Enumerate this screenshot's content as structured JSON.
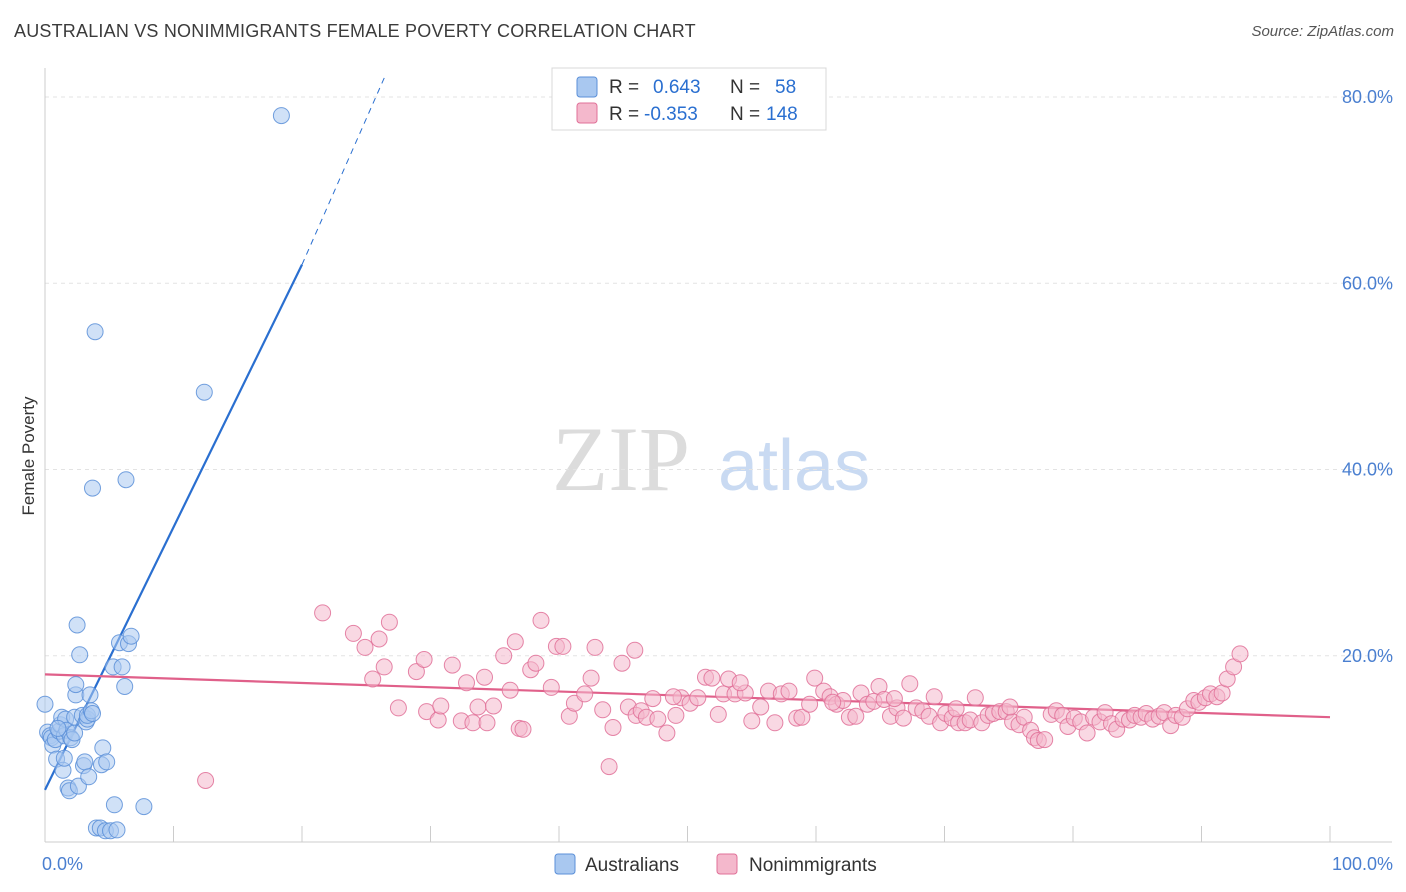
{
  "title": "AUSTRALIAN VS NONIMMIGRANTS FEMALE POVERTY CORRELATION CHART",
  "source": "Source: ZipAtlas.com",
  "watermark": {
    "zip": "ZIP",
    "atlas": "atlas"
  },
  "colors": {
    "blue": "#5b8fd8",
    "blue_fill": "#a9c8f0",
    "blue_line": "#2a6fd0",
    "pink": "#e07098",
    "pink_fill": "#f4b8cc",
    "pink_line": "#e0608a",
    "tick_text": "#4a7fd0"
  },
  "legend": {
    "rows": [
      {
        "r_label": "R =",
        "r_value": "0.643",
        "n_label": "N =",
        "n_value": "58"
      },
      {
        "r_label": "R =",
        "r_value": "-0.353",
        "n_label": "N =",
        "n_value": "148"
      }
    ]
  },
  "bottom_legend": [
    "Australians",
    "Nonimmigrants"
  ],
  "chart_data": {
    "type": "scatter",
    "title": "AUSTRALIAN VS NONIMMIGRANTS FEMALE POVERTY CORRELATION CHART",
    "xlabel": "",
    "ylabel": "Female Poverty",
    "xlim": [
      0,
      100
    ],
    "ylim": [
      0,
      80
    ],
    "x_tick_labels": [
      "0.0%",
      "100.0%"
    ],
    "y_ticks": [
      20,
      40,
      60,
      80
    ],
    "y_tick_labels": [
      "20.0%",
      "40.0%",
      "60.0%",
      "80.0%"
    ],
    "grid": true,
    "legend_position": "top-center",
    "series": [
      {
        "name": "Australians",
        "r": 0.643,
        "n": 58,
        "trend": {
          "x": [
            0,
            20
          ],
          "y": [
            5.6,
            62
          ],
          "dashed_to": [
            26.5,
            80
          ]
        },
        "points": [
          [
            0.0,
            14.8
          ],
          [
            0.2,
            11.8
          ],
          [
            0.4,
            11.4
          ],
          [
            0.5,
            11.2
          ],
          [
            0.6,
            10.4
          ],
          [
            0.8,
            11.0
          ],
          [
            0.9,
            8.9
          ],
          [
            1.1,
            11.9
          ],
          [
            1.2,
            12.6
          ],
          [
            1.3,
            13.4
          ],
          [
            1.4,
            7.7
          ],
          [
            1.5,
            9.0
          ],
          [
            1.5,
            11.4
          ],
          [
            1.6,
            13.2
          ],
          [
            1.7,
            12.0
          ],
          [
            1.8,
            5.8
          ],
          [
            1.9,
            5.5
          ],
          [
            2.0,
            11.2
          ],
          [
            2.1,
            11.0
          ],
          [
            2.3,
            11.7
          ],
          [
            2.3,
            13.4
          ],
          [
            2.4,
            15.8
          ],
          [
            2.4,
            16.9
          ],
          [
            2.5,
            23.3
          ],
          [
            2.6,
            6.0
          ],
          [
            2.7,
            20.1
          ],
          [
            2.9,
            13.6
          ],
          [
            3.0,
            8.2
          ],
          [
            3.1,
            8.6
          ],
          [
            3.2,
            12.9
          ],
          [
            3.3,
            13.2
          ],
          [
            3.3,
            13.6
          ],
          [
            3.4,
            7.0
          ],
          [
            3.5,
            15.8
          ],
          [
            3.6,
            14.1
          ],
          [
            3.7,
            13.8
          ],
          [
            3.7,
            38.0
          ],
          [
            3.9,
            54.8
          ],
          [
            4.0,
            1.5
          ],
          [
            4.3,
            1.5
          ],
          [
            4.4,
            8.3
          ],
          [
            4.5,
            10.1
          ],
          [
            4.7,
            1.2
          ],
          [
            4.8,
            8.6
          ],
          [
            5.1,
            1.2
          ],
          [
            5.3,
            18.8
          ],
          [
            5.4,
            4.0
          ],
          [
            5.6,
            1.3
          ],
          [
            5.8,
            21.4
          ],
          [
            6.0,
            18.8
          ],
          [
            6.2,
            16.7
          ],
          [
            6.3,
            38.9
          ],
          [
            6.5,
            21.3
          ],
          [
            6.7,
            22.1
          ],
          [
            7.7,
            3.8
          ],
          [
            12.4,
            48.3
          ],
          [
            18.4,
            78.0
          ],
          [
            1.0,
            12.2
          ]
        ]
      },
      {
        "name": "Nonimmigrants",
        "r": -0.353,
        "n": 148,
        "trend": {
          "x": [
            0,
            100
          ],
          "y": [
            18.0,
            13.4
          ]
        },
        "points": [
          [
            12.5,
            6.6
          ],
          [
            21.6,
            24.6
          ],
          [
            24.0,
            22.4
          ],
          [
            24.9,
            20.9
          ],
          [
            25.5,
            17.5
          ],
          [
            26.0,
            21.8
          ],
          [
            26.4,
            18.8
          ],
          [
            26.8,
            23.6
          ],
          [
            27.5,
            14.4
          ],
          [
            28.9,
            18.3
          ],
          [
            29.5,
            19.6
          ],
          [
            29.7,
            14.0
          ],
          [
            30.6,
            13.1
          ],
          [
            30.8,
            14.6
          ],
          [
            31.7,
            19.0
          ],
          [
            32.4,
            13.0
          ],
          [
            32.8,
            17.1
          ],
          [
            33.3,
            12.8
          ],
          [
            33.7,
            14.5
          ],
          [
            34.2,
            17.7
          ],
          [
            34.4,
            12.8
          ],
          [
            34.9,
            14.6
          ],
          [
            35.7,
            20.0
          ],
          [
            36.2,
            16.3
          ],
          [
            36.9,
            12.2
          ],
          [
            37.2,
            12.1
          ],
          [
            37.8,
            18.5
          ],
          [
            38.2,
            19.2
          ],
          [
            38.6,
            23.8
          ],
          [
            39.4,
            16.6
          ],
          [
            39.8,
            21.0
          ],
          [
            40.3,
            21.0
          ],
          [
            40.8,
            13.5
          ],
          [
            41.2,
            14.9
          ],
          [
            42.0,
            15.9
          ],
          [
            42.5,
            17.6
          ],
          [
            42.8,
            20.9
          ],
          [
            43.4,
            14.2
          ],
          [
            43.9,
            8.1
          ],
          [
            44.2,
            12.3
          ],
          [
            44.9,
            19.2
          ],
          [
            45.4,
            14.5
          ],
          [
            46.0,
            13.6
          ],
          [
            46.4,
            14.1
          ],
          [
            46.8,
            13.4
          ],
          [
            47.3,
            15.4
          ],
          [
            47.7,
            13.2
          ],
          [
            48.4,
            11.7
          ],
          [
            49.1,
            13.6
          ],
          [
            49.5,
            15.5
          ],
          [
            50.2,
            14.9
          ],
          [
            50.8,
            15.5
          ],
          [
            51.4,
            17.7
          ],
          [
            51.9,
            17.6
          ],
          [
            52.4,
            13.7
          ],
          [
            52.8,
            15.9
          ],
          [
            53.2,
            17.5
          ],
          [
            53.7,
            15.9
          ],
          [
            54.5,
            16.0
          ],
          [
            55.0,
            13.0
          ],
          [
            55.7,
            14.5
          ],
          [
            56.3,
            16.2
          ],
          [
            56.8,
            12.8
          ],
          [
            57.3,
            15.9
          ],
          [
            57.9,
            16.2
          ],
          [
            58.5,
            13.3
          ],
          [
            58.9,
            13.4
          ],
          [
            59.5,
            14.8
          ],
          [
            59.9,
            17.6
          ],
          [
            60.6,
            16.2
          ],
          [
            61.1,
            15.6
          ],
          [
            61.6,
            14.8
          ],
          [
            62.1,
            15.2
          ],
          [
            62.6,
            13.4
          ],
          [
            63.1,
            13.5
          ],
          [
            63.5,
            16.0
          ],
          [
            64.0,
            14.8
          ],
          [
            64.5,
            15.1
          ],
          [
            64.9,
            16.7
          ],
          [
            65.3,
            15.3
          ],
          [
            65.8,
            13.5
          ],
          [
            66.3,
            14.4
          ],
          [
            66.8,
            13.3
          ],
          [
            67.3,
            17.0
          ],
          [
            67.8,
            14.4
          ],
          [
            68.3,
            14.1
          ],
          [
            68.8,
            13.5
          ],
          [
            69.2,
            15.6
          ],
          [
            69.7,
            12.8
          ],
          [
            70.1,
            13.8
          ],
          [
            70.6,
            13.3
          ],
          [
            71.1,
            12.8
          ],
          [
            71.6,
            12.8
          ],
          [
            72.0,
            13.1
          ],
          [
            72.4,
            15.5
          ],
          [
            72.9,
            12.8
          ],
          [
            73.4,
            13.6
          ],
          [
            73.8,
            13.8
          ],
          [
            74.3,
            14.0
          ],
          [
            74.8,
            14.0
          ],
          [
            75.3,
            12.9
          ],
          [
            75.8,
            12.6
          ],
          [
            76.2,
            13.4
          ],
          [
            76.7,
            12.0
          ],
          [
            77.0,
            11.2
          ],
          [
            77.3,
            10.9
          ],
          [
            77.8,
            11.0
          ],
          [
            78.3,
            13.7
          ],
          [
            78.7,
            14.1
          ],
          [
            79.2,
            13.6
          ],
          [
            79.6,
            12.4
          ],
          [
            80.1,
            13.3
          ],
          [
            80.6,
            12.9
          ],
          [
            81.1,
            11.7
          ],
          [
            81.6,
            13.4
          ],
          [
            82.1,
            12.9
          ],
          [
            82.5,
            13.9
          ],
          [
            83.0,
            12.7
          ],
          [
            83.4,
            12.1
          ],
          [
            83.9,
            13.2
          ],
          [
            84.4,
            13.1
          ],
          [
            84.8,
            13.6
          ],
          [
            85.3,
            13.4
          ],
          [
            85.7,
            13.8
          ],
          [
            86.2,
            13.2
          ],
          [
            86.7,
            13.5
          ],
          [
            87.1,
            13.9
          ],
          [
            87.6,
            12.5
          ],
          [
            88.0,
            13.6
          ],
          [
            88.5,
            13.4
          ],
          [
            88.9,
            14.3
          ],
          [
            89.4,
            15.2
          ],
          [
            89.8,
            15.0
          ],
          [
            90.3,
            15.5
          ],
          [
            90.7,
            15.9
          ],
          [
            91.2,
            15.6
          ],
          [
            91.6,
            16.0
          ],
          [
            92.0,
            17.5
          ],
          [
            92.5,
            18.8
          ],
          [
            93.0,
            20.2
          ],
          [
            45.9,
            20.6
          ],
          [
            36.6,
            21.5
          ],
          [
            48.9,
            15.6
          ],
          [
            54.1,
            17.1
          ],
          [
            61.3,
            15.0
          ],
          [
            66.1,
            15.4
          ],
          [
            70.9,
            14.3
          ],
          [
            75.1,
            14.5
          ]
        ]
      }
    ]
  }
}
